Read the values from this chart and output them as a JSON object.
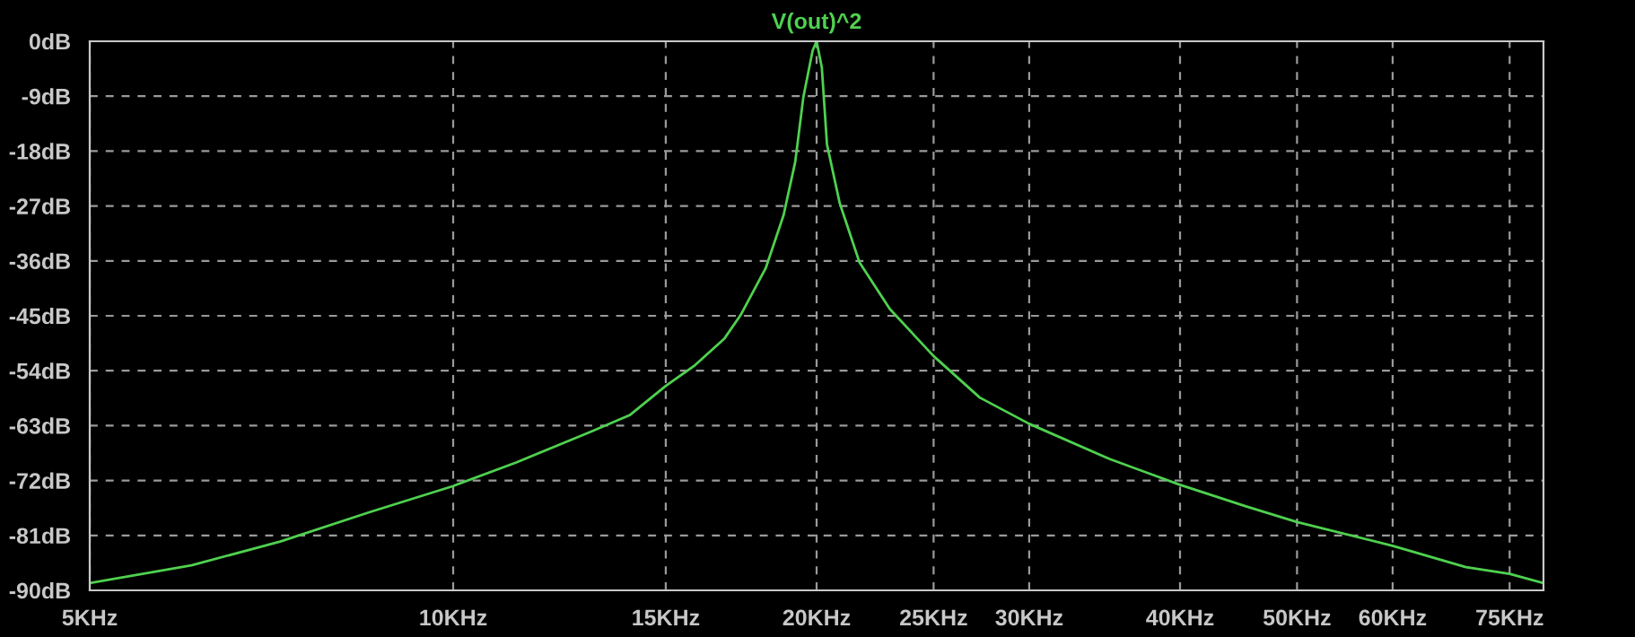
{
  "chart_data": {
    "type": "line",
    "title": "V(out)^2",
    "log": "x",
    "grid": true,
    "line_style": "solid",
    "marker": "none",
    "xlim": [
      5,
      80
    ],
    "ylim": [
      -90,
      0
    ],
    "xticks": [
      {
        "value": 5,
        "label": "5KHz"
      },
      {
        "value": 10,
        "label": "10KHz"
      },
      {
        "value": 15,
        "label": "15KHz"
      },
      {
        "value": 20,
        "label": "20KHz"
      },
      {
        "value": 25,
        "label": "25KHz"
      },
      {
        "value": 30,
        "label": "30KHz"
      },
      {
        "value": 40,
        "label": "40KHz"
      },
      {
        "value": 50,
        "label": "50KHz"
      },
      {
        "value": 60,
        "label": "60KHz"
      },
      {
        "value": 75,
        "label": "75KHz"
      }
    ],
    "yticks": [
      {
        "value": 0,
        "label": "0dB"
      },
      {
        "value": -9,
        "label": "-9dB"
      },
      {
        "value": -18,
        "label": "-18dB"
      },
      {
        "value": -27,
        "label": "-27dB"
      },
      {
        "value": -36,
        "label": "-36dB"
      },
      {
        "value": -45,
        "label": "-45dB"
      },
      {
        "value": -54,
        "label": "-54dB"
      },
      {
        "value": -63,
        "label": "-63dB"
      },
      {
        "value": -72,
        "label": "-72dB"
      },
      {
        "value": -81,
        "label": "-81dB"
      },
      {
        "value": -90,
        "label": "-90dB"
      }
    ],
    "x": [
      5,
      6.07,
      7.19,
      8.52,
      10,
      11.29,
      13.0,
      14.0,
      15,
      15.86,
      16.78,
      17.3,
      18.15,
      18.78,
      19.2,
      19.5,
      19.85,
      20,
      20.2,
      20.4,
      20.9,
      21.7,
      23.0,
      25,
      27.3,
      30,
      35,
      40,
      45.3,
      50,
      60,
      69,
      75,
      80
    ],
    "series": [
      {
        "color": "#4fd14f",
        "values": [
          -88.8,
          -85.9,
          -82.0,
          -77.2,
          -72.9,
          -69.0,
          -64.0,
          -61.3,
          -56.5,
          -53.1,
          -48.7,
          -44.9,
          -37.2,
          -28.5,
          -19.8,
          -9.2,
          -1.5,
          0,
          -4.3,
          -16.9,
          -26.5,
          -36.2,
          -43.9,
          -51.6,
          -58.4,
          -62.7,
          -68.5,
          -72.7,
          -76.2,
          -78.8,
          -82.7,
          -86.2,
          -87.3,
          -88.8
        ]
      }
    ]
  }
}
